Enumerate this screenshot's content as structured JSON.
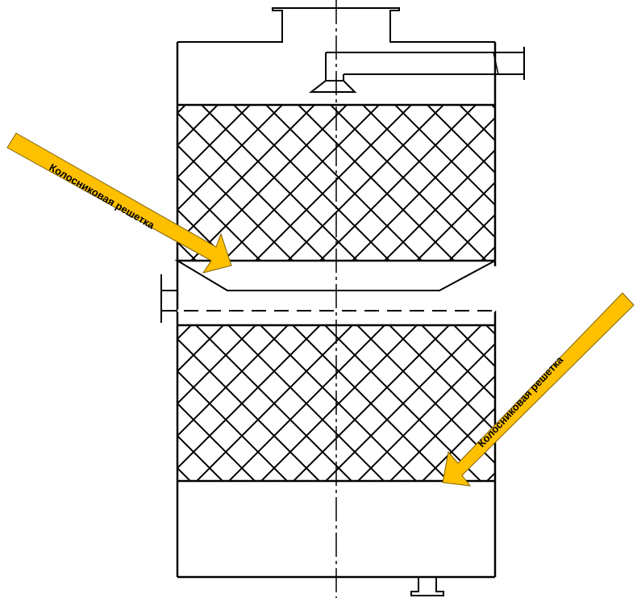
{
  "annotations": [
    {
      "text": "Колосниковая решетка",
      "arrow_color": "#FFC000"
    },
    {
      "text": "Колосниковая решетка",
      "arrow_color": "#FFC000"
    }
  ],
  "colors": {
    "line": "#000000",
    "background": "#FFFFFF",
    "arrow": "#FFC000",
    "arrow_outline": "#7F6000"
  }
}
